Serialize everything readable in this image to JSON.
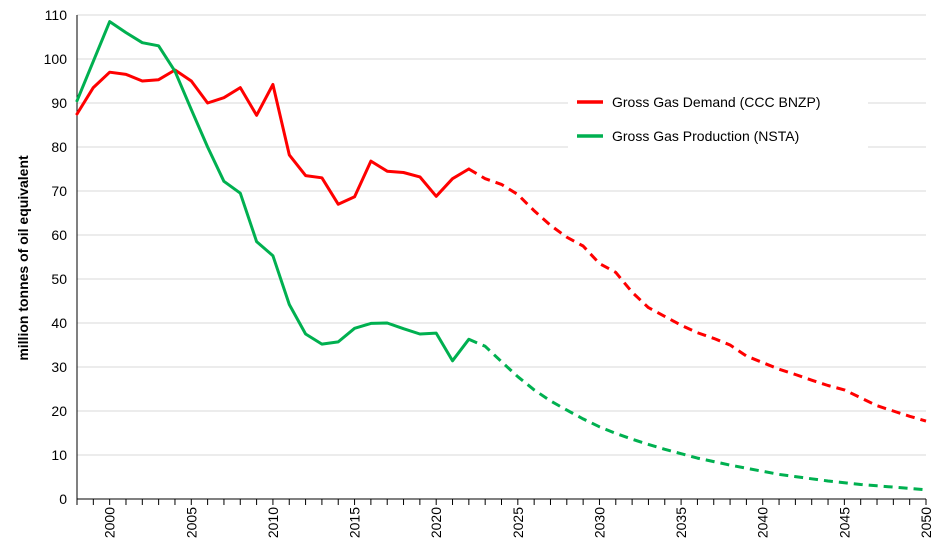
{
  "chart_data": {
    "type": "line",
    "title": "",
    "xlabel": "",
    "ylabel": "million tonnes of oil equivalent",
    "xlim": [
      1998,
      2050
    ],
    "ylim": [
      0,
      110
    ],
    "yticks": [
      0,
      10,
      20,
      30,
      40,
      50,
      60,
      70,
      80,
      90,
      100,
      110
    ],
    "xticks": [
      2000,
      2005,
      2010,
      2015,
      2020,
      2025,
      2030,
      2035,
      2040,
      2045,
      2050
    ],
    "grid": "horizontal",
    "legend_position": "upper-right",
    "series": [
      {
        "name": "Gross Gas Demand (CCC BNZP)",
        "color": "#ff0000",
        "x": [
          1998,
          1999,
          2000,
          2001,
          2002,
          2003,
          2004,
          2005,
          2006,
          2007,
          2008,
          2009,
          2010,
          2011,
          2012,
          2013,
          2014,
          2015,
          2016,
          2017,
          2018,
          2019,
          2020,
          2021,
          2022,
          2023,
          2024,
          2025,
          2026,
          2027,
          2028,
          2029,
          2030,
          2031,
          2032,
          2033,
          2034,
          2035,
          2036,
          2037,
          2038,
          2039,
          2040,
          2041,
          2042,
          2043,
          2044,
          2045,
          2046,
          2047,
          2048,
          2049,
          2050
        ],
        "values": [
          87.5,
          93.5,
          97,
          96.5,
          95,
          95.3,
          97.5,
          95,
          90,
          91.2,
          93.5,
          87.2,
          94.2,
          78.2,
          73.5,
          73,
          67,
          68.7,
          76.8,
          74.5,
          74.2,
          73.2,
          68.8,
          72.8,
          75,
          72.8,
          71.5,
          69.2,
          65.5,
          62.2,
          59.5,
          57.5,
          53.5,
          51.5,
          47,
          43.5,
          41.5,
          39.5,
          37.8,
          36.5,
          35,
          32.5,
          31,
          29.5,
          28.3,
          27,
          25.8,
          24.8,
          23,
          21.2,
          20,
          18.8,
          17.7
        ],
        "projected_from": 2022
      },
      {
        "name": "Gross Gas Production (NSTA)",
        "color": "#00b050",
        "x": [
          1998,
          2000,
          2001,
          2002,
          2003,
          2004,
          2005,
          2006,
          2007,
          2008,
          2009,
          2010,
          2011,
          2012,
          2013,
          2014,
          2015,
          2016,
          2017,
          2018,
          2019,
          2020,
          2021,
          2022,
          2023,
          2024,
          2025,
          2026,
          2027,
          2028,
          2029,
          2030,
          2031,
          2032,
          2033,
          2034,
          2035,
          2036,
          2037,
          2038,
          2039,
          2040,
          2041,
          2042,
          2043,
          2044,
          2045,
          2046,
          2047,
          2048,
          2049,
          2050
        ],
        "values": [
          90.5,
          108.5,
          106,
          103.7,
          103,
          97.2,
          88.5,
          80,
          72.2,
          69.5,
          58.5,
          55.3,
          44.2,
          37.5,
          35.2,
          35.7,
          38.8,
          39.9,
          40,
          38.7,
          37.5,
          37.7,
          31.4,
          36.3,
          34.7,
          31.2,
          27.8,
          24.8,
          22.3,
          20.2,
          18.2,
          16.4,
          14.9,
          13.6,
          12.4,
          11.3,
          10.3,
          9.3,
          8.5,
          7.7,
          7,
          6.3,
          5.6,
          5.1,
          4.6,
          4.1,
          3.7,
          3.3,
          3,
          2.7,
          2.4,
          2.1
        ],
        "projected_from": 2022
      }
    ]
  }
}
